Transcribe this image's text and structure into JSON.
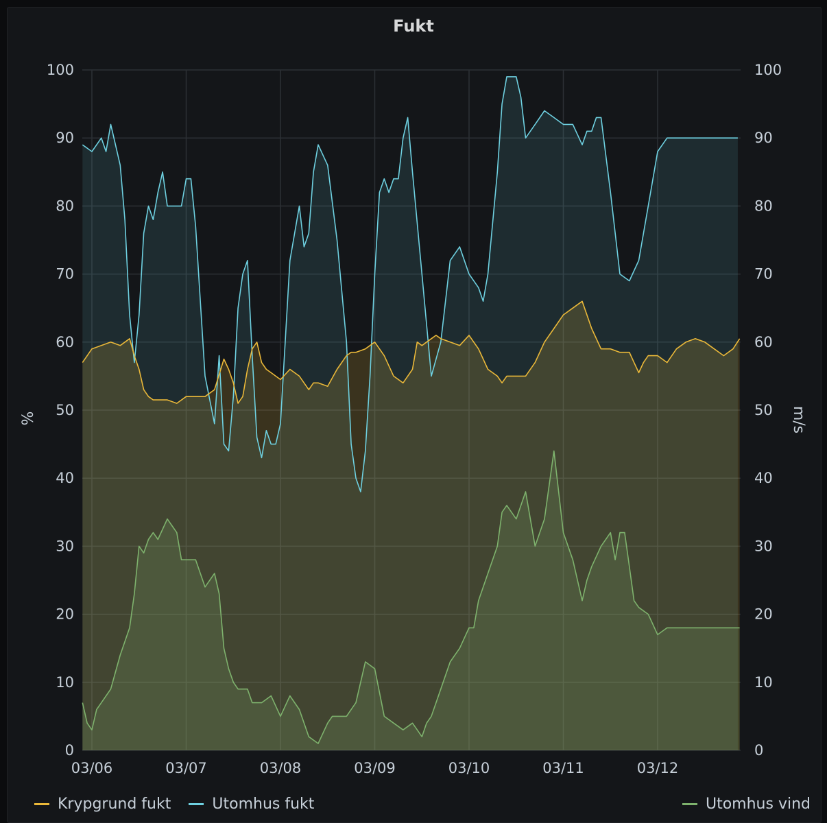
{
  "panel": {
    "title": "Fukt"
  },
  "colors": {
    "krypgrund": "#eab839",
    "utomhus_fukt": "#6ed0e0",
    "utomhus_vind": "#7eb26d"
  },
  "chart_data": {
    "type": "line",
    "title": "Fukt",
    "ylabel_left": "%",
    "ylabel_right": "m/s",
    "ylim_left": [
      0,
      100
    ],
    "ylim_right": [
      0,
      100
    ],
    "y_ticks": [
      "0",
      "10",
      "20",
      "30",
      "40",
      "50",
      "60",
      "70",
      "80",
      "90",
      "100"
    ],
    "x_ticks": [
      "03/06",
      "03/07",
      "03/08",
      "03/09",
      "03/10",
      "03/11",
      "03/12"
    ],
    "xlim_days": [
      -0.1,
      6.87
    ],
    "grid": true,
    "legend_position": "bottom",
    "series": [
      {
        "name": "Krypgrund fukt",
        "axis": "left",
        "x": [
          -0.1,
          0.0,
          0.2,
          0.3,
          0.4,
          0.45,
          0.5,
          0.55,
          0.6,
          0.65,
          0.7,
          0.8,
          0.9,
          1.0,
          1.1,
          1.2,
          1.3,
          1.4,
          1.45,
          1.5,
          1.55,
          1.6,
          1.65,
          1.7,
          1.75,
          1.8,
          1.85,
          1.9,
          1.95,
          2.0,
          2.1,
          2.2,
          2.3,
          2.35,
          2.4,
          2.5,
          2.6,
          2.7,
          2.75,
          2.8,
          2.9,
          3.0,
          3.1,
          3.2,
          3.3,
          3.4,
          3.45,
          3.5,
          3.55,
          3.6,
          3.65,
          3.7,
          3.8,
          3.9,
          4.0,
          4.1,
          4.2,
          4.3,
          4.35,
          4.4,
          4.5,
          4.6,
          4.7,
          4.8,
          4.9,
          5.0,
          5.1,
          5.2,
          5.3,
          5.4,
          5.5,
          5.6,
          5.7,
          5.75,
          5.8,
          5.85,
          5.9,
          6.0,
          6.1,
          6.2,
          6.3,
          6.4,
          6.5,
          6.6,
          6.7,
          6.8,
          6.87
        ],
        "values": [
          57,
          59,
          60,
          59.5,
          60.5,
          58,
          56,
          53,
          52,
          51.5,
          51.5,
          51.5,
          51,
          52,
          52,
          52,
          53,
          57.5,
          56,
          54,
          51,
          52,
          56,
          59,
          60,
          57,
          56,
          55.5,
          55,
          54.5,
          56,
          55,
          53,
          54,
          54,
          53.5,
          56,
          58,
          58.5,
          58.5,
          59,
          60,
          58,
          55,
          54,
          56,
          60,
          59.5,
          60,
          60.5,
          61,
          60.5,
          60,
          59.5,
          61,
          59,
          56,
          55,
          54,
          55,
          55,
          55,
          57,
          60,
          62,
          64,
          65,
          66,
          62,
          59,
          59,
          58.5,
          58.5,
          57,
          55.5,
          57,
          58,
          58,
          57,
          59,
          60,
          60.5,
          60,
          59,
          58,
          59,
          60.5
        ]
      },
      {
        "name": "Utomhus fukt",
        "axis": "left",
        "x": [
          -0.1,
          0.0,
          0.1,
          0.15,
          0.2,
          0.25,
          0.3,
          0.35,
          0.4,
          0.45,
          0.5,
          0.55,
          0.6,
          0.65,
          0.7,
          0.75,
          0.8,
          0.85,
          0.9,
          0.95,
          1.0,
          1.05,
          1.1,
          1.2,
          1.3,
          1.35,
          1.4,
          1.45,
          1.5,
          1.55,
          1.6,
          1.65,
          1.7,
          1.75,
          1.8,
          1.85,
          1.9,
          1.95,
          2.0,
          2.1,
          2.2,
          2.25,
          2.3,
          2.35,
          2.4,
          2.5,
          2.6,
          2.7,
          2.75,
          2.8,
          2.85,
          2.9,
          2.95,
          3.0,
          3.05,
          3.1,
          3.15,
          3.2,
          3.25,
          3.3,
          3.35,
          3.4,
          3.5,
          3.6,
          3.7,
          3.8,
          3.9,
          4.0,
          4.1,
          4.15,
          4.2,
          4.3,
          4.35,
          4.4,
          4.5,
          4.55,
          4.6,
          4.7,
          4.8,
          4.9,
          5.0,
          5.1,
          5.2,
          5.25,
          5.3,
          5.35,
          5.4,
          5.5,
          5.6,
          5.7,
          5.8,
          5.9,
          6.0,
          6.1,
          6.2,
          6.3,
          6.35,
          6.4,
          6.5,
          6.6,
          6.7,
          6.8,
          6.85
        ],
        "values": [
          89,
          88,
          90,
          88,
          92,
          89,
          86,
          78,
          64,
          57,
          64,
          76,
          80,
          78,
          82,
          85,
          80,
          80,
          80,
          80,
          84,
          84,
          77,
          55,
          48,
          58,
          45,
          44,
          52,
          65,
          70,
          72,
          58,
          46,
          43,
          47,
          45,
          45,
          48,
          72,
          80,
          74,
          76,
          85,
          89,
          86,
          75,
          60,
          45,
          40,
          38,
          44,
          55,
          70,
          82,
          84,
          82,
          84,
          84,
          90,
          93,
          85,
          70,
          55,
          60,
          72,
          74,
          70,
          68,
          66,
          70,
          85,
          95,
          99,
          99,
          96,
          90,
          92,
          94,
          93,
          92,
          92,
          89,
          91,
          91,
          93,
          93,
          82,
          70,
          69,
          72,
          80,
          88,
          90,
          90,
          90,
          90,
          90,
          90,
          90,
          90,
          90,
          90
        ]
      },
      {
        "name": "Utomhus vind",
        "axis": "right",
        "x": [
          -0.1,
          -0.05,
          0.0,
          0.05,
          0.1,
          0.2,
          0.3,
          0.4,
          0.45,
          0.5,
          0.55,
          0.6,
          0.65,
          0.7,
          0.8,
          0.9,
          0.95,
          1.0,
          1.05,
          1.1,
          1.2,
          1.3,
          1.35,
          1.4,
          1.45,
          1.5,
          1.55,
          1.6,
          1.65,
          1.7,
          1.8,
          1.9,
          2.0,
          2.1,
          2.2,
          2.3,
          2.4,
          2.5,
          2.55,
          2.6,
          2.7,
          2.8,
          2.9,
          3.0,
          3.1,
          3.2,
          3.3,
          3.4,
          3.45,
          3.5,
          3.55,
          3.6,
          3.7,
          3.8,
          3.9,
          4.0,
          4.05,
          4.1,
          4.2,
          4.3,
          4.35,
          4.4,
          4.5,
          4.6,
          4.7,
          4.8,
          4.9,
          5.0,
          5.1,
          5.2,
          5.25,
          5.3,
          5.4,
          5.5,
          5.55,
          5.6,
          5.65,
          5.7,
          5.75,
          5.8,
          5.9,
          6.0,
          6.1,
          6.2,
          6.3,
          6.35,
          6.4,
          6.45,
          6.5,
          6.6,
          6.65,
          6.7,
          6.75,
          6.8,
          6.87
        ],
        "values": [
          7,
          4,
          3,
          6,
          7,
          9,
          14,
          18,
          23,
          30,
          29,
          31,
          32,
          31,
          34,
          32,
          28,
          28,
          28,
          28,
          24,
          26,
          23,
          15,
          12,
          10,
          9,
          9,
          9,
          7,
          7,
          8,
          5,
          8,
          6,
          2,
          1,
          4,
          5,
          5,
          5,
          7,
          13,
          12,
          5,
          4,
          3,
          4,
          3,
          2,
          4,
          5,
          9,
          13,
          15,
          18,
          18,
          22,
          26,
          30,
          35,
          36,
          34,
          38,
          30,
          34,
          44,
          32,
          28,
          22,
          25,
          27,
          30,
          32,
          28,
          32,
          32,
          27,
          22,
          21,
          20,
          17,
          18,
          18,
          18,
          18,
          18,
          18,
          18,
          18,
          18,
          18,
          18,
          18,
          18
        ]
      }
    ]
  },
  "legend": {
    "krypgrund": "Krypgrund fukt",
    "utomhus_fukt": "Utomhus fukt",
    "utomhus_vind": "Utomhus vind"
  }
}
